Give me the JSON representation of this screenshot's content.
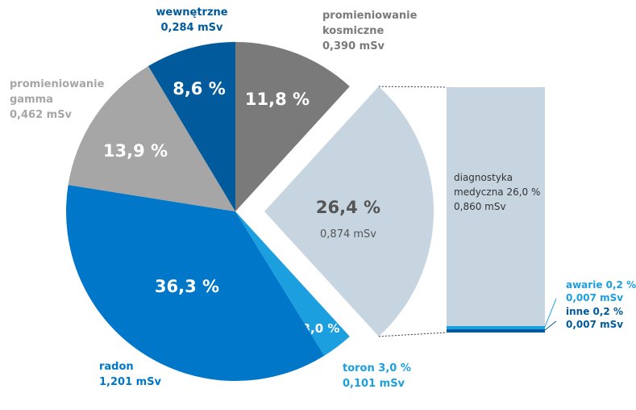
{
  "chart_data": {
    "type": "pie",
    "slices": [
      {
        "key": "cosmic",
        "pct_label": "11,8 %",
        "value": 11.8,
        "color": "#7a7a7a",
        "label_color": "#7a7a7a",
        "ext_label": [
          "promieniowanie",
          "kosmiczne",
          "0,390 mSv"
        ]
      },
      {
        "key": "medical",
        "pct_label": "26,4 %",
        "value": 26.4,
        "color": "#c7d5e0",
        "label_color": "#555555",
        "sub_label": "0,874 mSv",
        "exploded": true
      },
      {
        "key": "thoron",
        "pct_label": "3,0 %",
        "value": 3.0,
        "color": "#1b9fdf",
        "label_color": "#1b9fdf",
        "ext_label": [
          "toron 3,0 %",
          "0,101 mSv"
        ]
      },
      {
        "key": "radon",
        "pct_label": "36,3 %",
        "value": 36.3,
        "color": "#0077c8",
        "label_color": "#0077c8",
        "ext_label": [
          "radon",
          "1,201 mSv"
        ]
      },
      {
        "key": "gamma",
        "pct_label": "13,9 %",
        "value": 13.9,
        "color": "#a6a6a6",
        "label_color": "#a6a6a6",
        "ext_label": [
          "promieniowanie",
          "gamma",
          "0,462 mSv"
        ]
      },
      {
        "key": "internal",
        "pct_label": "8,6 %",
        "value": 8.6,
        "color": "#005a9c",
        "label_color": "#005a9c",
        "ext_label": [
          "wewnętrzne",
          "0,284 mSv"
        ]
      }
    ],
    "breakdown": {
      "of_slice": "medical",
      "segments": [
        {
          "key": "diagnostics",
          "value": 26.0,
          "color": "#c7d5e0",
          "label_color": "#333333",
          "label": [
            "diagnostyka",
            "medyczna 26,0 %",
            "0,860 mSv"
          ]
        },
        {
          "key": "accidents",
          "value": 0.2,
          "color": "#1b9fdf",
          "label_color": "#1b9fdf",
          "label": [
            "awarie 0,2 %",
            "0,007 mSv"
          ]
        },
        {
          "key": "other",
          "value": 0.2,
          "color": "#005a9c",
          "label_color": "#005a9c",
          "label": [
            "inne 0,2 %",
            "0,007 mSv"
          ]
        }
      ]
    }
  }
}
